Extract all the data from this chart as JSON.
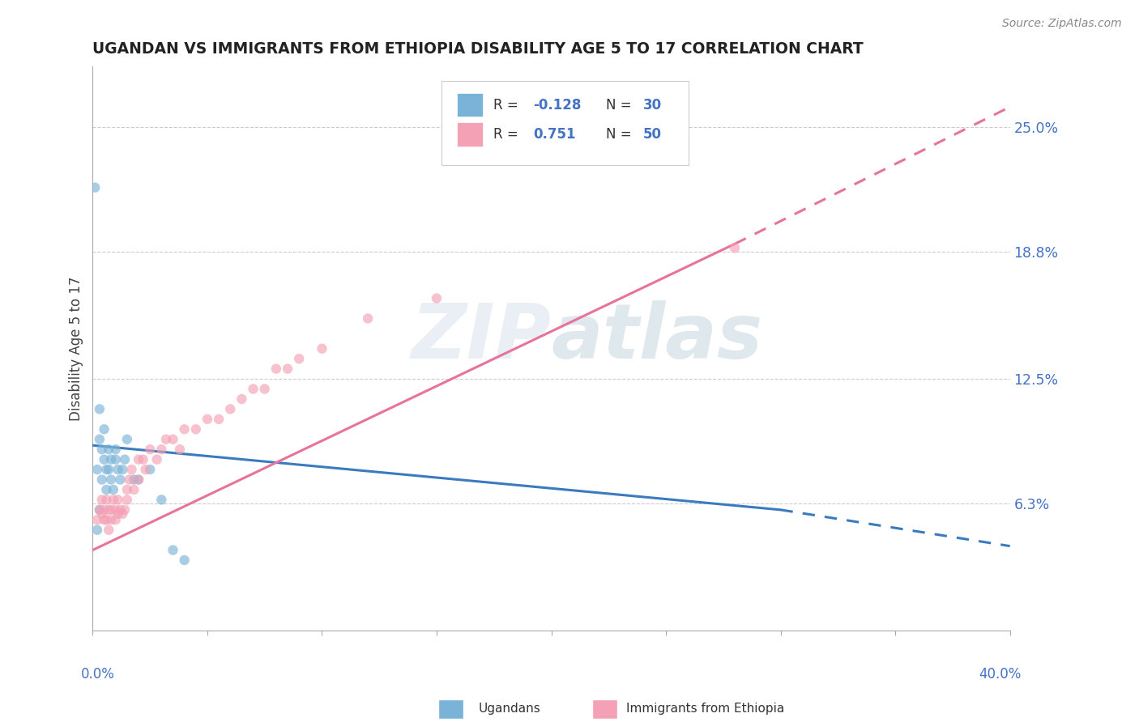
{
  "title": "UGANDAN VS IMMIGRANTS FROM ETHIOPIA DISABILITY AGE 5 TO 17 CORRELATION CHART",
  "source": "Source: ZipAtlas.com",
  "ylabel": "Disability Age 5 to 17",
  "yaxis_labels": [
    "6.3%",
    "12.5%",
    "18.8%",
    "25.0%"
  ],
  "yaxis_values": [
    0.063,
    0.125,
    0.188,
    0.25
  ],
  "ugandan_color": "#7ab3d8",
  "ethiopia_color": "#f4a0b5",
  "ugandan_label": "Ugandans",
  "ethiopia_label": "Immigrants from Ethiopia",
  "background_color": "#ffffff",
  "xlim": [
    0.0,
    0.4
  ],
  "ylim": [
    0.0,
    0.28
  ],
  "ugandan_x": [
    0.002,
    0.003,
    0.003,
    0.004,
    0.004,
    0.005,
    0.005,
    0.006,
    0.006,
    0.007,
    0.007,
    0.008,
    0.008,
    0.009,
    0.01,
    0.01,
    0.011,
    0.012,
    0.013,
    0.014,
    0.015,
    0.018,
    0.02,
    0.025,
    0.03,
    0.035,
    0.04,
    0.002,
    0.003,
    0.001
  ],
  "ugandan_y": [
    0.08,
    0.095,
    0.11,
    0.075,
    0.09,
    0.085,
    0.1,
    0.08,
    0.07,
    0.09,
    0.08,
    0.075,
    0.085,
    0.07,
    0.085,
    0.09,
    0.08,
    0.075,
    0.08,
    0.085,
    0.095,
    0.075,
    0.075,
    0.08,
    0.065,
    0.04,
    0.035,
    0.05,
    0.06,
    0.22
  ],
  "ethiopia_x": [
    0.002,
    0.003,
    0.004,
    0.004,
    0.005,
    0.005,
    0.006,
    0.006,
    0.007,
    0.007,
    0.008,
    0.008,
    0.009,
    0.01,
    0.01,
    0.011,
    0.011,
    0.012,
    0.013,
    0.014,
    0.015,
    0.015,
    0.016,
    0.017,
    0.018,
    0.02,
    0.02,
    0.022,
    0.023,
    0.025,
    0.028,
    0.03,
    0.032,
    0.035,
    0.038,
    0.04,
    0.045,
    0.05,
    0.055,
    0.06,
    0.065,
    0.07,
    0.075,
    0.08,
    0.085,
    0.09,
    0.1,
    0.12,
    0.15,
    0.28
  ],
  "ethiopia_y": [
    0.055,
    0.06,
    0.058,
    0.065,
    0.055,
    0.06,
    0.065,
    0.055,
    0.06,
    0.05,
    0.06,
    0.055,
    0.065,
    0.06,
    0.055,
    0.058,
    0.065,
    0.06,
    0.058,
    0.06,
    0.065,
    0.07,
    0.075,
    0.08,
    0.07,
    0.085,
    0.075,
    0.085,
    0.08,
    0.09,
    0.085,
    0.09,
    0.095,
    0.095,
    0.09,
    0.1,
    0.1,
    0.105,
    0.105,
    0.11,
    0.115,
    0.12,
    0.12,
    0.13,
    0.13,
    0.135,
    0.14,
    0.155,
    0.165,
    0.19
  ],
  "ug_trend_x0": 0.0,
  "ug_trend_x_solid_end": 0.3,
  "ug_trend_x_end": 0.4,
  "ug_trend_y0": 0.092,
  "ug_trend_y_solid_end": 0.06,
  "ug_trend_y_end": 0.042,
  "eth_trend_x0": 0.0,
  "eth_trend_x_solid_end": 0.28,
  "eth_trend_x_end": 0.4,
  "eth_trend_y0": 0.04,
  "eth_trend_y_solid_end": 0.192,
  "eth_trend_y_end": 0.26
}
